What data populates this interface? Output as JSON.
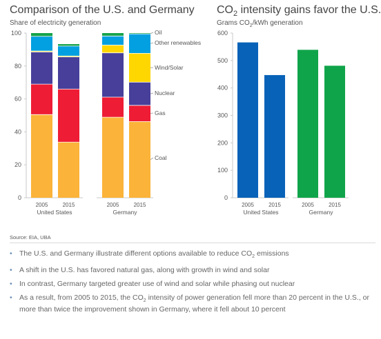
{
  "left_title": "Comparison of the U.S. and Germany",
  "left_subtitle": "Share of electricity generation",
  "right_title_pre": "CO",
  "right_title_sub": "2",
  "right_title_post": " intensity gains favor the U.S.",
  "right_subtitle_pre": "Grams CO",
  "right_subtitle_sub": "2",
  "right_subtitle_post": "/kWh generation",
  "source": "Source: EIA, UBA",
  "bullets": [
    {
      "pre": "The U.S. and Germany illustrate different options available to reduce CO",
      "sub": "2",
      "post": " emissions"
    },
    {
      "pre": "A shift in the U.S. has favored natural gas, along with growth in wind and solar",
      "sub": "",
      "post": ""
    },
    {
      "pre": "In contrast, Germany targeted greater use of wind and solar while phasing out nuclear",
      "sub": "",
      "post": ""
    },
    {
      "pre": "As a result, from 2005 to 2015, the CO",
      "sub": "2",
      "post": " intensity of power generation fell more than 20 percent in the U.S., or more than twice the improvement shown in Germany, where it fell about 10 percent"
    }
  ],
  "bullet_glyph": "•",
  "chart_data": [
    {
      "type": "bar",
      "stacked": true,
      "title": "Comparison of the U.S. and Germany",
      "ylabel": "Share of electricity generation",
      "ylim": [
        0,
        100
      ],
      "yticks": [
        0,
        20,
        40,
        60,
        80,
        100
      ],
      "bars": [
        {
          "year": "2005",
          "group": "United States",
          "values": [
            50.5,
            18.5,
            19.5,
            0.6,
            8.9,
            2.0
          ]
        },
        {
          "year": "2015",
          "group": "United States",
          "values": [
            33.8,
            32.2,
            19.5,
            0.6,
            6.0,
            1.2
          ]
        },
        {
          "year": "2005",
          "group": "Germany",
          "values": [
            48.9,
            12.2,
            26.9,
            4.7,
            5.5,
            1.8
          ]
        },
        {
          "year": "2015",
          "group": "Germany",
          "values": [
            46.3,
            9.8,
            14.1,
            17.5,
            11.8,
            0.5
          ]
        }
      ],
      "series": [
        {
          "name": "Coal",
          "color": "#fbb33a"
        },
        {
          "name": "Gas",
          "color": "#ee1c35"
        },
        {
          "name": "Nuclear",
          "color": "#473f9a"
        },
        {
          "name": "Wind/Solar",
          "color": "#fed700"
        },
        {
          "name": "Other renewables",
          "color": "#02a0e0"
        },
        {
          "name": "Oil",
          "color": "#15a34a"
        }
      ],
      "groups": [
        "United States",
        "Germany"
      ],
      "separator_color": "#ffffff"
    },
    {
      "type": "bar",
      "title": "CO2 intensity gains favor the U.S.",
      "ylabel": "Grams CO2/kWh generation",
      "ylim": [
        0,
        600
      ],
      "yticks": [
        0,
        100,
        200,
        300,
        400,
        500,
        600
      ],
      "bars": [
        {
          "year": "2005",
          "group": "United States",
          "value": 566,
          "color": "#0862b8"
        },
        {
          "year": "2015",
          "group": "United States",
          "value": 447,
          "color": "#0862b8"
        },
        {
          "year": "2005",
          "group": "Germany",
          "value": 539,
          "color": "#10a44a"
        },
        {
          "year": "2015",
          "group": "Germany",
          "value": 481,
          "color": "#10a44a"
        }
      ],
      "groups": [
        "United States",
        "Germany"
      ]
    }
  ]
}
